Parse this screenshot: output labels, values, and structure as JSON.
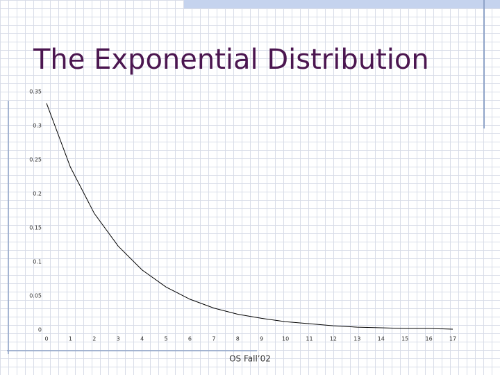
{
  "chart_data": {
    "type": "line",
    "title": "The Exponential Distribution",
    "x": [
      0,
      1,
      2,
      3,
      4,
      5,
      6,
      7,
      8,
      9,
      10,
      11,
      12,
      13,
      14,
      15,
      16,
      17
    ],
    "series": [
      {
        "color": "#000000",
        "values": [
          0.333,
          0.239,
          0.171,
          0.123,
          0.088,
          0.063,
          0.045,
          0.032,
          0.023,
          0.017,
          0.012,
          0.009,
          0.006,
          0.004,
          0.003,
          0.002,
          0.002,
          0.001
        ]
      }
    ],
    "xlim": [
      0,
      17
    ],
    "xticks": [
      0,
      1,
      2,
      3,
      4,
      5,
      6,
      7,
      8,
      9,
      10,
      11,
      12,
      13,
      14,
      15,
      16,
      17
    ],
    "ylim": [
      0,
      0.35
    ],
    "yticks": [
      0,
      0.05,
      0.1,
      0.15,
      0.2,
      0.25,
      0.3,
      0.35
    ]
  },
  "footer": "OS Fall’02"
}
